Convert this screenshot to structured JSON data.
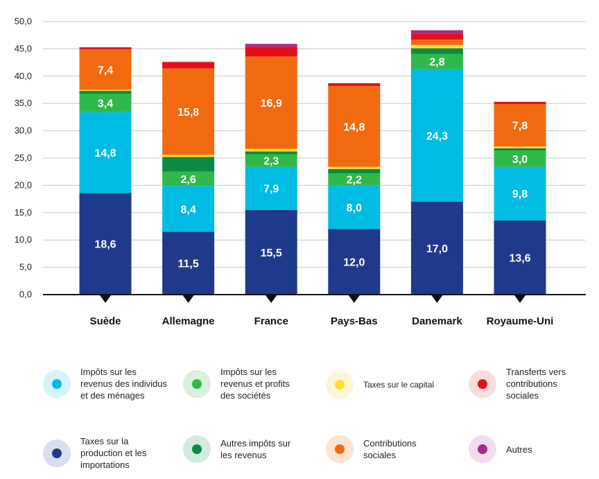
{
  "chart_data": {
    "type": "bar",
    "stacked": true,
    "categories": [
      "Suède",
      "Allemagne",
      "France",
      "Pays-Bas",
      "Danemark",
      "Royaume-Uni"
    ],
    "ylim": [
      0,
      50
    ],
    "yticks": [
      "0,0",
      "5,0",
      "10,0",
      "15,0",
      "20,0",
      "25,0",
      "30,0",
      "35,0",
      "40,0",
      "45,0",
      "50,0"
    ],
    "ytick_values": [
      0,
      5,
      10,
      15,
      20,
      25,
      30,
      35,
      40,
      45,
      50
    ],
    "grid": true,
    "legend_position": "bottom",
    "series": [
      {
        "name": "Taxes sur la production et les importations",
        "color": "#1f3a8a",
        "values": [
          18.6,
          11.5,
          15.5,
          12.0,
          17.0,
          13.6
        ],
        "labels": [
          "18,6",
          "11,5",
          "15,5",
          "12,0",
          "17,0",
          "13,6"
        ]
      },
      {
        "name": "Impôts sur les revenus des individus et des ménages",
        "color": "#00bce4",
        "values": [
          14.8,
          8.4,
          7.9,
          8.0,
          24.3,
          9.8
        ],
        "labels": [
          "14,8",
          "8,4",
          "7,9",
          "8,0",
          "24,3",
          "9,8"
        ]
      },
      {
        "name": "Impôts sur les revenus et profits des sociétés",
        "color": "#2fb94a",
        "values": [
          3.4,
          2.6,
          2.3,
          2.2,
          2.8,
          3.0
        ],
        "labels": [
          "3,4",
          "2,6",
          "2,3",
          "2,2",
          "2,8",
          "3,0"
        ]
      },
      {
        "name": "Autres impôts sur les revenus",
        "color": "#0a8a43",
        "values": [
          0.5,
          2.7,
          0.5,
          0.8,
          1.0,
          0.4
        ],
        "labels": [
          "",
          "",
          "",
          "",
          "",
          ""
        ]
      },
      {
        "name": "Taxes sur le capital",
        "color": "#ffe033",
        "values": [
          0.2,
          0.4,
          0.5,
          0.4,
          0.6,
          0.3
        ],
        "labels": [
          "",
          "",
          "",
          "",
          "",
          ""
        ]
      },
      {
        "name": "Contributions sociales",
        "color": "#f26a10",
        "values": [
          7.4,
          15.8,
          16.9,
          14.8,
          1.0,
          7.8
        ],
        "labels": [
          "7,4",
          "15,8",
          "16,9",
          "14,8",
          "",
          "7,8"
        ]
      },
      {
        "name": "Transferts vers contributions sociales",
        "color": "#e3101b",
        "values": [
          0.3,
          1.2,
          1.8,
          0.5,
          1.1,
          0.4
        ],
        "labels": [
          "",
          "",
          "",
          "",
          "",
          ""
        ]
      },
      {
        "name": "Autres",
        "color": "#a62b8c",
        "values": [
          0.1,
          0.0,
          0.5,
          0.0,
          0.6,
          0.0
        ],
        "labels": [
          "",
          "",
          "",
          "",
          "",
          ""
        ]
      }
    ]
  },
  "legend": [
    {
      "label": "Impôts sur les revenus des individus et des ménages",
      "color": "#00bce4",
      "halo": "#d4f3fb",
      "icon": "light-blue-dot-icon"
    },
    {
      "label": "Impôts sur les revenus et profits des sociétés",
      "color": "#2fb94a",
      "halo": "#d9f0dc",
      "icon": "green-dot-icon"
    },
    {
      "label": "Taxes sur le capital",
      "color": "#ffe033",
      "halo": "#fbf7d6",
      "icon": "yellow-dot-icon"
    },
    {
      "label": "Transferts vers contributions sociales",
      "color": "#e3101b",
      "halo": "#fbdcdd",
      "icon": "red-dot-icon"
    },
    {
      "label": "Taxes sur la production et les importations",
      "color": "#1f3a8a",
      "halo": "#d9dfee",
      "icon": "navy-dot-icon"
    },
    {
      "label": "Autres impôts sur les revenus",
      "color": "#0a8a43",
      "halo": "#d2ebdd",
      "icon": "dark-green-dot-icon"
    },
    {
      "label": "Contributions sociales",
      "color": "#f26a10",
      "halo": "#fde4d2",
      "icon": "orange-dot-icon"
    },
    {
      "label": "Autres",
      "color": "#a62b8c",
      "halo": "#f1dcec",
      "icon": "purple-dot-icon"
    }
  ]
}
